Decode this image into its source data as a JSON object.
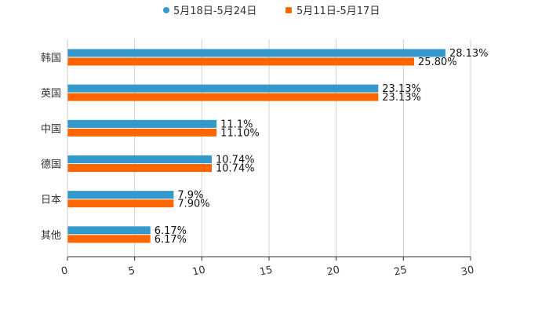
{
  "chart_data": {
    "type": "bar",
    "orientation": "horizontal",
    "categories": [
      "韩国",
      "英国",
      "中国",
      "德国",
      "日本",
      "其他"
    ],
    "series": [
      {
        "name": "5月18日-5月24日",
        "color": "#3399cc",
        "values": [
          28.13,
          23.13,
          11.1,
          10.74,
          7.9,
          6.17
        ],
        "labels": [
          "28.13%",
          "23.13%",
          "11.1%",
          "10.74%",
          "7.9%",
          "6.17%"
        ]
      },
      {
        "name": "5月11日-5月17日",
        "color": "#ff6600",
        "values": [
          25.8,
          23.13,
          11.1,
          10.74,
          7.9,
          6.17
        ],
        "labels": [
          "25.80%",
          "23.13%",
          "11.10%",
          "10.74%",
          "7.90%",
          "6.17%"
        ]
      }
    ],
    "xlim": [
      0,
      30
    ],
    "xticks": [
      0,
      5,
      10,
      15,
      20,
      25,
      30
    ],
    "xtick_labels": [
      "0",
      "5",
      "10",
      "15",
      "20",
      "25",
      "30"
    ],
    "grid": true,
    "legend": "top-center"
  }
}
